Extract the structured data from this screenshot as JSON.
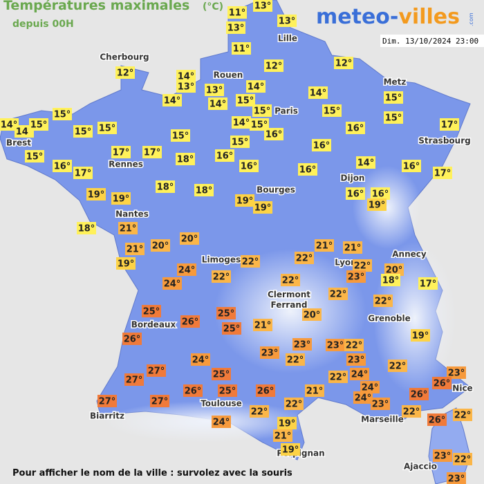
{
  "header": {
    "title": "Températures maximales",
    "unit": "(°C)",
    "subtitle": "depuis 00H"
  },
  "logo": {
    "part1": "meteo-",
    "part2": "villes",
    "suffix": ".com"
  },
  "timestamp": "Dim. 13/10/2024 23:00",
  "footer": "Pour afficher le nom de la ville : survolez avec la souris",
  "cities": [
    "Cherbourg",
    "Lille",
    "Rouen",
    "Metz",
    "Paris",
    "Brest",
    "Strasbourg",
    "Rennes",
    "Bourges",
    "Dijon",
    "Nantes",
    "Limoges",
    "Annecy",
    "Lyon",
    "Clermont Ferrand",
    "Grenoble",
    "Bordeaux",
    "Nice",
    "Toulouse",
    "Biarritz",
    "Marseille",
    "Perpignan",
    "Ajaccio"
  ],
  "temperatures": [
    "13°",
    "11°",
    "13°",
    "13°",
    "11°",
    "12°",
    "12°",
    "12°",
    "14°",
    "13°",
    "13°",
    "14°",
    "14°",
    "14°",
    "15°",
    "14°",
    "15°",
    "15°",
    "15°",
    "15°",
    "15°",
    "14°",
    "14°",
    "15°",
    "15°",
    "15°",
    "14°",
    "15°",
    "16°",
    "16°",
    "17°",
    "15°",
    "15°",
    "16°",
    "17°",
    "17°",
    "18°",
    "16°",
    "15°",
    "16°",
    "16°",
    "16°",
    "14°",
    "16°",
    "17°",
    "17°",
    "19°",
    "19°",
    "18°",
    "18°",
    "19°",
    "19°",
    "16°",
    "16°",
    "19°",
    "18°",
    "21°",
    "21°",
    "20°",
    "20°",
    "19°",
    "21°",
    "21°",
    "22°",
    "22°",
    "22°",
    "20°",
    "24°",
    "22°",
    "23°",
    "18°",
    "17°",
    "24°",
    "22°",
    "22°",
    "22°",
    "20°",
    "25°",
    "25°",
    "26°",
    "21°",
    "25°",
    "26°",
    "19°",
    "23°",
    "23°",
    "22°",
    "23°",
    "24°",
    "22°",
    "23°",
    "22°",
    "27°",
    "27°",
    "25°",
    "24°",
    "22°",
    "23°",
    "26°",
    "24°",
    "26°",
    "25°",
    "26°",
    "21°",
    "26°",
    "24°",
    "23°",
    "27°",
    "27°",
    "22°",
    "22°",
    "22°",
    "26°",
    "22°",
    "24°",
    "19°",
    "21°",
    "23°",
    "22°",
    "19°",
    "23°"
  ]
}
